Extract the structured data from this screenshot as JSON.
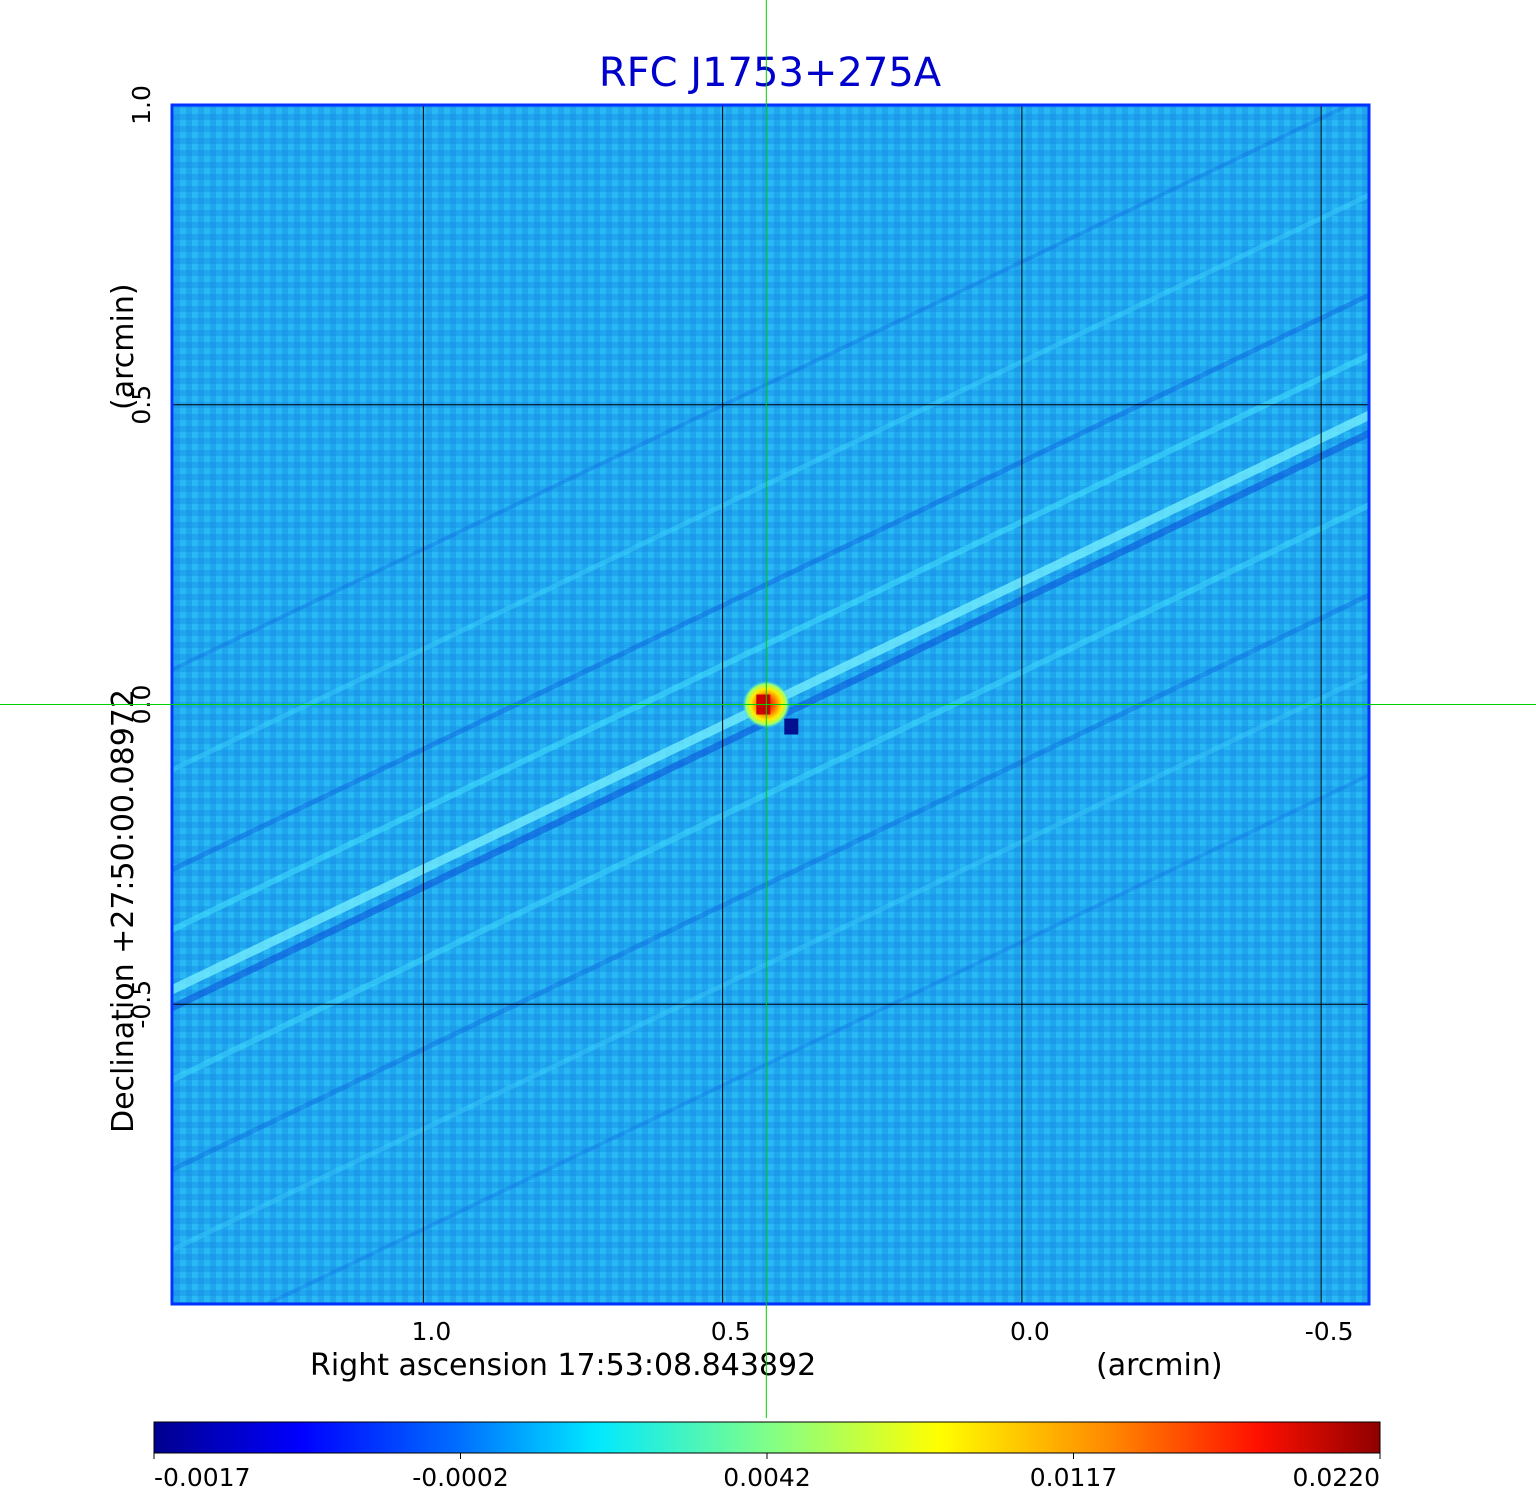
{
  "chart_data": {
    "type": "heatmap",
    "title": "RFC J1753+275A",
    "xlabel": "Right ascension  17:53:08.843892",
    "xunit": "(arcmin)",
    "ylabel": "Declination  +27:50:00.08972",
    "yunit": "(arcmin)",
    "xlim": [
      1.42,
      -0.58
    ],
    "ylim": [
      -1.0,
      1.0
    ],
    "x_ticks": [
      "1.0",
      "0.5",
      "0.0",
      "-0.5"
    ],
    "x_tick_values": [
      1.0,
      0.5,
      0.0,
      -0.5
    ],
    "y_ticks": [
      "1.0",
      "0.5",
      "0.0",
      "-0.5"
    ],
    "y_tick_values": [
      1.0,
      0.5,
      0.0,
      -0.5
    ],
    "grid": true,
    "crosshair": {
      "x": 0.427,
      "y": 0.0
    },
    "source": {
      "x": 0.427,
      "y": 0.0,
      "peak": 0.022
    },
    "colorbar": {
      "labels": [
        "-0.0017",
        "-0.0002",
        "0.0042",
        "0.0117",
        "0.0220"
      ],
      "colormap": "jet",
      "range": [
        -0.0017,
        0.022
      ]
    },
    "colors": {
      "title": "#0000cc",
      "frame": "#0033ff",
      "crosshair": "#00d000",
      "grid": "#000000",
      "background_field": "#20a8f0"
    }
  }
}
